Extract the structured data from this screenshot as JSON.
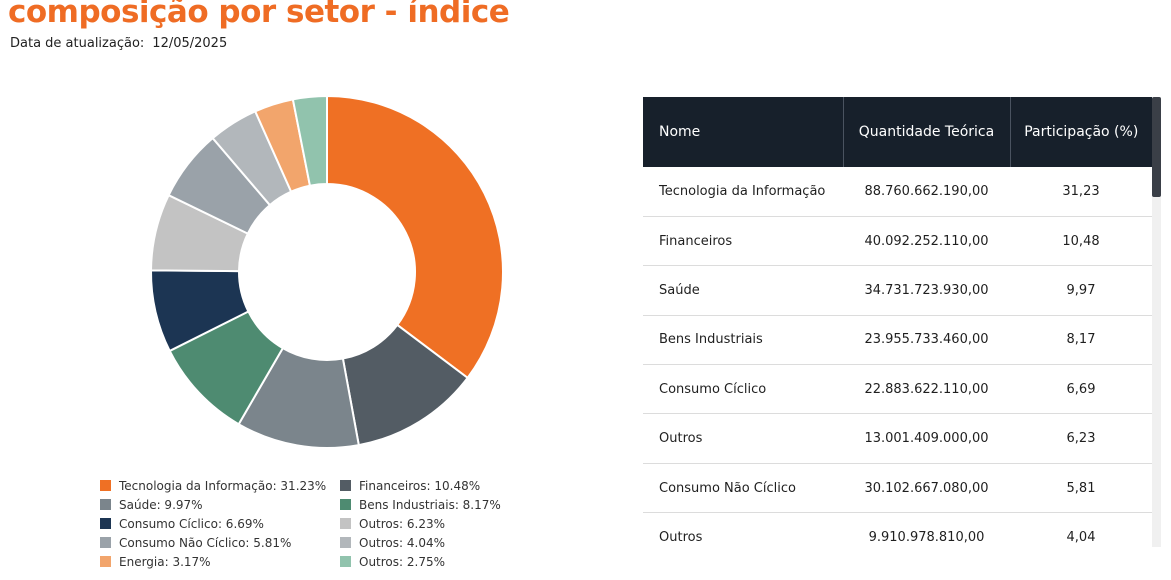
{
  "header": {
    "title": "composição por setor - índice",
    "update_label": "Data de atualização:",
    "update_date": "12/05/2025"
  },
  "chart_data": {
    "type": "pie",
    "hole": true,
    "slices": [
      {
        "label": "Tecnologia da Informação",
        "legend": "Tecnologia da Informação: 31.23%",
        "value": 31.23,
        "color": "#ef7024"
      },
      {
        "label": "Financeiros",
        "legend": "Financeiros: 10.48%",
        "value": 10.48,
        "color": "#535c64"
      },
      {
        "label": "Saúde",
        "legend": "Saúde: 9.97%",
        "value": 9.97,
        "color": "#7b858c"
      },
      {
        "label": "Bens Industriais",
        "legend": "Bens Industriais: 8.17%",
        "value": 8.17,
        "color": "#4e8b71"
      },
      {
        "label": "Consumo Cíclico",
        "legend": "Consumo Cíclico: 6.69%",
        "value": 6.69,
        "color": "#1c3553"
      },
      {
        "label": "Outros",
        "legend": "Outros: 6.23%",
        "value": 6.23,
        "color": "#c3c3c3"
      },
      {
        "label": "Consumo Não Cíclico",
        "legend": "Consumo Não Cíclico: 5.81%",
        "value": 5.81,
        "color": "#9aa2a9"
      },
      {
        "label": "Outros",
        "legend": "Outros: 4.04%",
        "value": 4.04,
        "color": "#b2b7bb"
      },
      {
        "label": "Energia",
        "legend": "Energia: 3.17%",
        "value": 3.17,
        "color": "#f2a56c"
      },
      {
        "label": "Outros",
        "legend": "Outros: 2.75%",
        "value": 2.75,
        "color": "#91c3ad"
      }
    ]
  },
  "table": {
    "headers": [
      "Nome",
      "Quantidade Teórica",
      "Participação (%)"
    ],
    "rows": [
      [
        "Tecnologia da Informação",
        "88.760.662.190,00",
        "31,23"
      ],
      [
        "Financeiros",
        "40.092.252.110,00",
        "10,48"
      ],
      [
        "Saúde",
        "34.731.723.930,00",
        "9,97"
      ],
      [
        "Bens Industriais",
        "23.955.733.460,00",
        "8,17"
      ],
      [
        "Consumo Cíclico",
        "22.883.622.110,00",
        "6,69"
      ],
      [
        "Outros",
        "13.001.409.000,00",
        "6,23"
      ],
      [
        "Consumo Não Cíclico",
        "30.102.667.080,00",
        "5,81"
      ],
      [
        "Outros",
        "9.910.978.810,00",
        "4,04"
      ]
    ]
  }
}
